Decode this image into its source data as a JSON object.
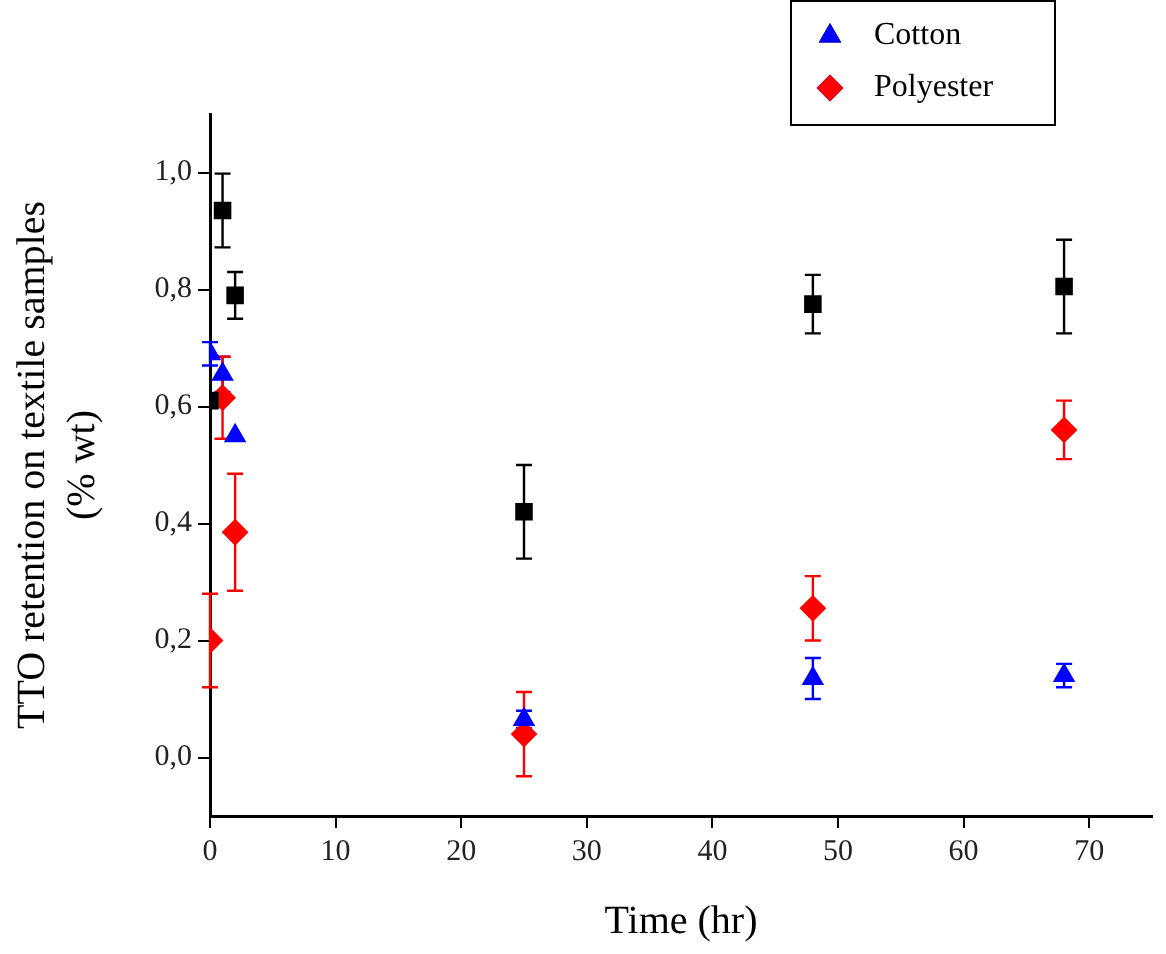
{
  "chart_data": {
    "type": "scatter",
    "xlabel": "Time (hr)",
    "ylabel": "TTO retention on textile samples\n(% wt)",
    "x": [
      0,
      1,
      2,
      25,
      48,
      68
    ],
    "series": [
      {
        "color": "#000000",
        "marker": "square",
        "values": [
          0.61,
          0.935,
          0.79,
          0.42,
          0.775,
          0.805
        ],
        "errors": [
          null,
          0.063,
          0.04,
          0.08,
          0.05,
          0.08
        ]
      },
      {
        "name": "Cotton",
        "color": "#0000ff",
        "marker": "triangle",
        "values": [
          0.69,
          0.655,
          0.55,
          0.065,
          0.135,
          0.14
        ],
        "errors": [
          0.02,
          0.03,
          null,
          0.015,
          0.035,
          0.02
        ]
      },
      {
        "name": "Polyester",
        "color": "#ff0000",
        "marker": "diamond",
        "values": [
          0.2,
          0.615,
          0.385,
          0.04,
          0.255,
          0.56
        ],
        "errors": [
          0.08,
          0.07,
          0.1,
          0.072,
          0.055,
          0.05
        ]
      }
    ],
    "xlim": [
      0,
      75
    ],
    "xticks": [
      0,
      10,
      20,
      30,
      40,
      50,
      60,
      70
    ],
    "ylim": [
      -0.1,
      1.1
    ],
    "yticks": [
      {
        "value": 0,
        "label": "0,0"
      },
      {
        "value": 0.2,
        "label": "0,2"
      },
      {
        "value": 0.4,
        "label": "0,4"
      },
      {
        "value": 0.6,
        "label": "0,6"
      },
      {
        "value": 0.8,
        "label": "0,8"
      },
      {
        "value": 1,
        "label": "1,0"
      }
    ],
    "grid": false,
    "legend": "top right"
  }
}
